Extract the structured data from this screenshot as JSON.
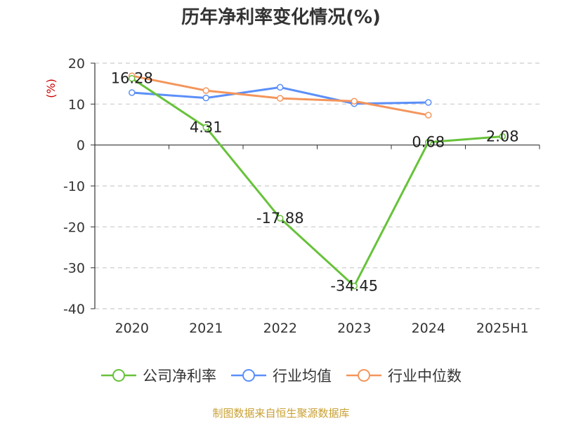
{
  "chart_data": {
    "type": "line",
    "title": "历年净利率变化情况(%)",
    "ylabel": "(%)",
    "categories": [
      "2020",
      "2021",
      "2022",
      "2023",
      "2024",
      "2025H1"
    ],
    "yticks": [
      "20",
      "10",
      "0",
      "-10",
      "-20",
      "-30",
      "-40"
    ],
    "ylim": [
      -40,
      20
    ],
    "grid": true,
    "legend_position": "bottom",
    "series": [
      {
        "name": "公司净利率",
        "color": "#67c23a",
        "values": [
          16.28,
          4.31,
          -17.88,
          -34.45,
          0.68,
          2.08
        ],
        "labels": [
          "16.28",
          "4.31",
          "-17.88",
          "-34.45",
          "0.68",
          "2.08"
        ]
      },
      {
        "name": "行业均值",
        "color": "#5b8ff9",
        "values": [
          12.8,
          11.5,
          14.1,
          10.1,
          10.4,
          null
        ]
      },
      {
        "name": "行业中位数",
        "color": "#f4955b",
        "values": [
          16.9,
          13.3,
          11.4,
          10.7,
          7.3,
          null
        ]
      }
    ]
  },
  "source_note": "制图数据来自恒生聚源数据库"
}
